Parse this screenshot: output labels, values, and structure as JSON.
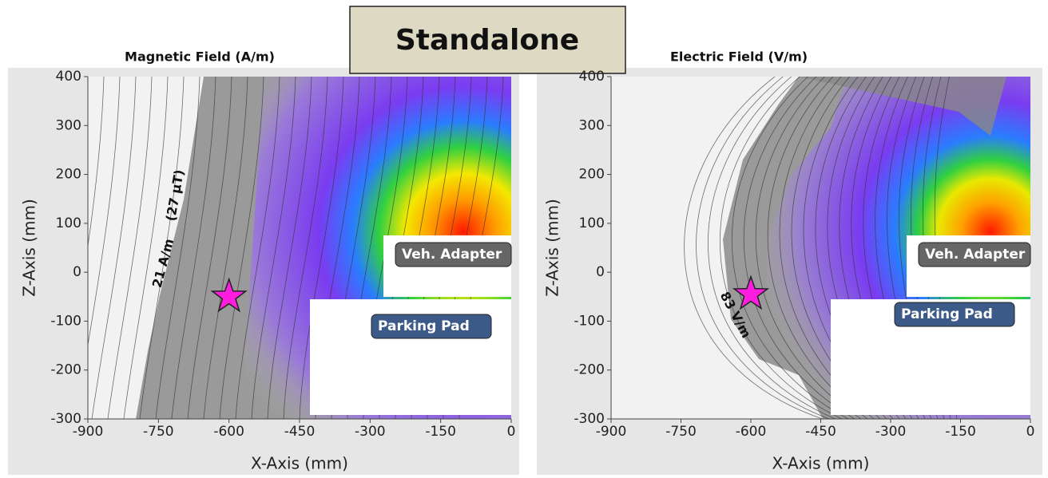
{
  "title": "Standalone",
  "chart_data": [
    {
      "type": "contour",
      "title": "Magnetic Field (A/m)",
      "x_label": "X-Axis (mm)",
      "y_label": "Z-Axis (mm)",
      "xlim": [
        -900,
        0
      ],
      "ylim": [
        -300,
        400
      ],
      "xticks": [
        -900,
        -750,
        -600,
        -450,
        -300,
        -150,
        0
      ],
      "yticks": [
        -300,
        -200,
        -100,
        0,
        100,
        200,
        300,
        400
      ],
      "annotations": [
        "21 A/m",
        "(27 µT)"
      ],
      "points": {
        "x": [
          -600
        ],
        "y": [
          -50
        ],
        "color": "#ff1ee0"
      },
      "insets": [
        "Veh. Adapter",
        "Parking Pad"
      ]
    },
    {
      "type": "contour",
      "title": "Electric Field (V/m)",
      "x_label": "X-Axis (mm)",
      "y_label": "Z-Axis (mm)",
      "xlim": [
        -900,
        0
      ],
      "ylim": [
        -300,
        400
      ],
      "xticks": [
        -900,
        -750,
        -600,
        -450,
        -300,
        -150,
        0
      ],
      "yticks": [
        -300,
        -200,
        -100,
        0,
        100,
        200,
        300,
        400
      ],
      "annotations": [
        "83 V/m"
      ],
      "points": {
        "x": [
          -600
        ],
        "y": [
          -45
        ],
        "color": "#ff1ee0"
      },
      "insets": [
        "Veh. Adapter",
        "Parking Pad"
      ]
    }
  ]
}
